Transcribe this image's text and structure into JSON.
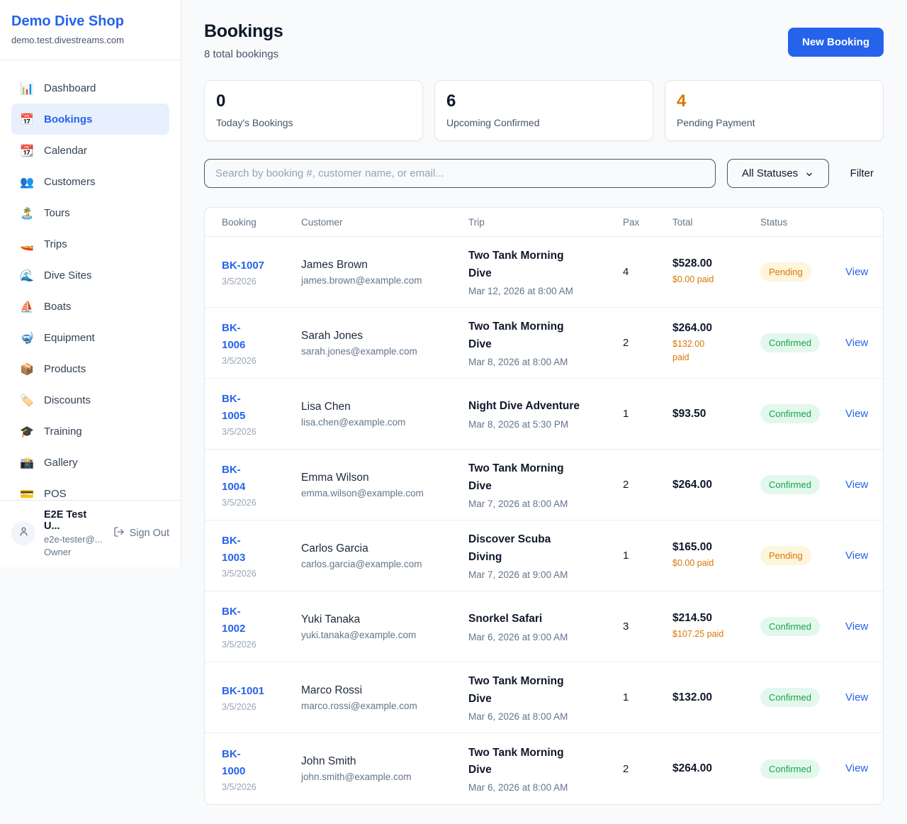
{
  "app": {
    "shop_name": "Demo Dive Shop",
    "shop_domain": "demo.test.divestreams.com"
  },
  "sidebar": {
    "items": [
      {
        "label": "Dashboard",
        "icon": "bar-chart",
        "glyph": "📊",
        "active": false
      },
      {
        "label": "Bookings",
        "icon": "calendar",
        "glyph": "📅",
        "active": true
      },
      {
        "label": "Calendar",
        "icon": "tear-off-calendar",
        "glyph": "📆",
        "active": false
      },
      {
        "label": "Customers",
        "icon": "people",
        "glyph": "👥",
        "active": false
      },
      {
        "label": "Tours",
        "icon": "desert-island",
        "glyph": "🏝️",
        "active": false
      },
      {
        "label": "Trips",
        "icon": "speedboat",
        "glyph": "🚤",
        "active": false
      },
      {
        "label": "Dive Sites",
        "icon": "wave",
        "glyph": "🌊",
        "active": false
      },
      {
        "label": "Boats",
        "icon": "sailboat",
        "glyph": "⛵",
        "active": false
      },
      {
        "label": "Equipment",
        "icon": "diving-mask",
        "glyph": "🤿",
        "active": false
      },
      {
        "label": "Products",
        "icon": "package",
        "glyph": "📦",
        "active": false
      },
      {
        "label": "Discounts",
        "icon": "price-tag",
        "glyph": "🏷️",
        "active": false
      },
      {
        "label": "Training",
        "icon": "graduation-cap",
        "glyph": "🎓",
        "active": false
      },
      {
        "label": "Gallery",
        "icon": "camera-flash",
        "glyph": "📸",
        "active": false
      },
      {
        "label": "POS",
        "icon": "credit-card",
        "glyph": "💳",
        "active": false
      }
    ],
    "user": {
      "name": "E2E Test U...",
      "email": "e2e-tester@...",
      "role": "Owner",
      "sign_out_label": "Sign Out"
    }
  },
  "header": {
    "title": "Bookings",
    "subtitle": "8 total bookings",
    "new_booking_label": "New Booking"
  },
  "stats": [
    {
      "value": "0",
      "label": "Today's Bookings",
      "color": "#0f172a"
    },
    {
      "value": "6",
      "label": "Upcoming Confirmed",
      "color": "#0f172a"
    },
    {
      "value": "4",
      "label": "Pending Payment",
      "color": "#d97706"
    }
  ],
  "filters": {
    "search_placeholder": "Search by booking #, customer name, or email...",
    "status_selected": "All Statuses",
    "filter_label": "Filter"
  },
  "table": {
    "columns": [
      "Booking",
      "Customer",
      "Trip",
      "Pax",
      "Total",
      "Status"
    ],
    "rows": [
      {
        "id": "BK-1007",
        "date": "3/5/2026",
        "customer": "James Brown",
        "email": "james.brown@example.com",
        "trip": "Two Tank Morning\nDive",
        "trip_time": "Mar 12, 2026 at 8:00 AM",
        "pax": "4",
        "total": "$528.00",
        "paid": "$0.00 paid",
        "status": "Pending",
        "action": "View"
      },
      {
        "id": "BK-\n1006",
        "date": "3/5/2026",
        "customer": "Sarah Jones",
        "email": "sarah.jones@example.com",
        "trip": "Two Tank Morning\nDive",
        "trip_time": "Mar 8, 2026 at 8:00 AM",
        "pax": "2",
        "total": "$264.00",
        "paid": "$132.00\npaid",
        "status": "Confirmed",
        "action": "View"
      },
      {
        "id": "BK-\n1005",
        "date": "3/5/2026",
        "customer": "Lisa Chen",
        "email": "lisa.chen@example.com",
        "trip": "Night Dive Adventure",
        "trip_time": "Mar 8, 2026 at 5:30 PM",
        "pax": "1",
        "total": "$93.50",
        "paid": "",
        "status": "Confirmed",
        "action": "View"
      },
      {
        "id": "BK-\n1004",
        "date": "3/5/2026",
        "customer": "Emma Wilson",
        "email": "emma.wilson@example.com",
        "trip": "Two Tank Morning\nDive",
        "trip_time": "Mar 7, 2026 at 8:00 AM",
        "pax": "2",
        "total": "$264.00",
        "paid": "",
        "status": "Confirmed",
        "action": "View"
      },
      {
        "id": "BK-\n1003",
        "date": "3/5/2026",
        "customer": "Carlos Garcia",
        "email": "carlos.garcia@example.com",
        "trip": "Discover Scuba\nDiving",
        "trip_time": "Mar 7, 2026 at 9:00 AM",
        "pax": "1",
        "total": "$165.00",
        "paid": "$0.00 paid",
        "status": "Pending",
        "action": "View"
      },
      {
        "id": "BK-\n1002",
        "date": "3/5/2026",
        "customer": "Yuki Tanaka",
        "email": "yuki.tanaka@example.com",
        "trip": "Snorkel Safari",
        "trip_time": "Mar 6, 2026 at 9:00 AM",
        "pax": "3",
        "total": "$214.50",
        "paid": "$107.25 paid",
        "status": "Confirmed",
        "action": "View"
      },
      {
        "id": "BK-1001",
        "date": "3/5/2026",
        "customer": "Marco Rossi",
        "email": "marco.rossi@example.com",
        "trip": "Two Tank Morning\nDive",
        "trip_time": "Mar 6, 2026 at 8:00 AM",
        "pax": "1",
        "total": "$132.00",
        "paid": "",
        "status": "Confirmed",
        "action": "View"
      },
      {
        "id": "BK-\n1000",
        "date": "3/5/2026",
        "customer": "John Smith",
        "email": "john.smith@example.com",
        "trip": "Two Tank Morning\nDive",
        "trip_time": "Mar 6, 2026 at 8:00 AM",
        "pax": "2",
        "total": "$264.00",
        "paid": "",
        "status": "Confirmed",
        "action": "View"
      }
    ]
  },
  "colors": {
    "accent_blue": "#2563eb",
    "accent_orange": "#d97706",
    "status_green": "#18a34a",
    "pending_badge_bg": "#fdf5dc",
    "confirmed_badge_bg": "#e3f8ec"
  }
}
